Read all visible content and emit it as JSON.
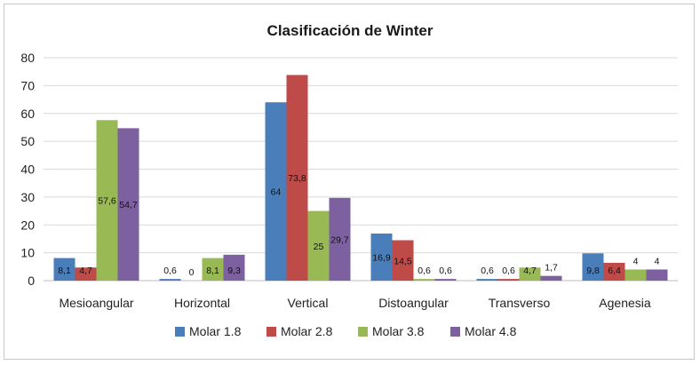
{
  "chart_data": {
    "type": "bar",
    "title": "Clasificación de Winter",
    "xlabel": "",
    "ylabel": "",
    "ylim": [
      0,
      80
    ],
    "yticks": [
      0,
      10,
      20,
      30,
      40,
      50,
      60,
      70,
      80
    ],
    "grid": true,
    "legend_position": "bottom",
    "categories": [
      "Mesioangular",
      "Horizontal",
      "Vertical",
      "Distoangular",
      "Transverso",
      "Agenesia"
    ],
    "series": [
      {
        "name": "Molar 1.8",
        "color": "#4a7ebb",
        "values": [
          8.1,
          0.6,
          64,
          16.9,
          0.6,
          9.8
        ],
        "labels": [
          "8,1",
          "0,6",
          "64",
          "16,9",
          "0,6",
          "9,8"
        ]
      },
      {
        "name": "Molar 2.8",
        "color": "#be4b48",
        "values": [
          4.7,
          0,
          73.8,
          14.5,
          0.6,
          6.4
        ],
        "labels": [
          "4,7",
          "0",
          "73,8",
          "14,5",
          "0,6",
          "6,4"
        ]
      },
      {
        "name": "Molar 3.8",
        "color": "#98b954",
        "values": [
          57.6,
          8.1,
          25,
          0.6,
          4.7,
          4
        ],
        "labels": [
          "57,6",
          "8,1",
          "25",
          "0,6",
          "4,7",
          "4"
        ]
      },
      {
        "name": "Molar 4.8",
        "color": "#7d60a0",
        "values": [
          54.7,
          9.3,
          29.7,
          0.6,
          1.7,
          4
        ],
        "labels": [
          "54,7",
          "9,3",
          "29,7",
          "0,6",
          "1,7",
          "4"
        ]
      }
    ]
  }
}
